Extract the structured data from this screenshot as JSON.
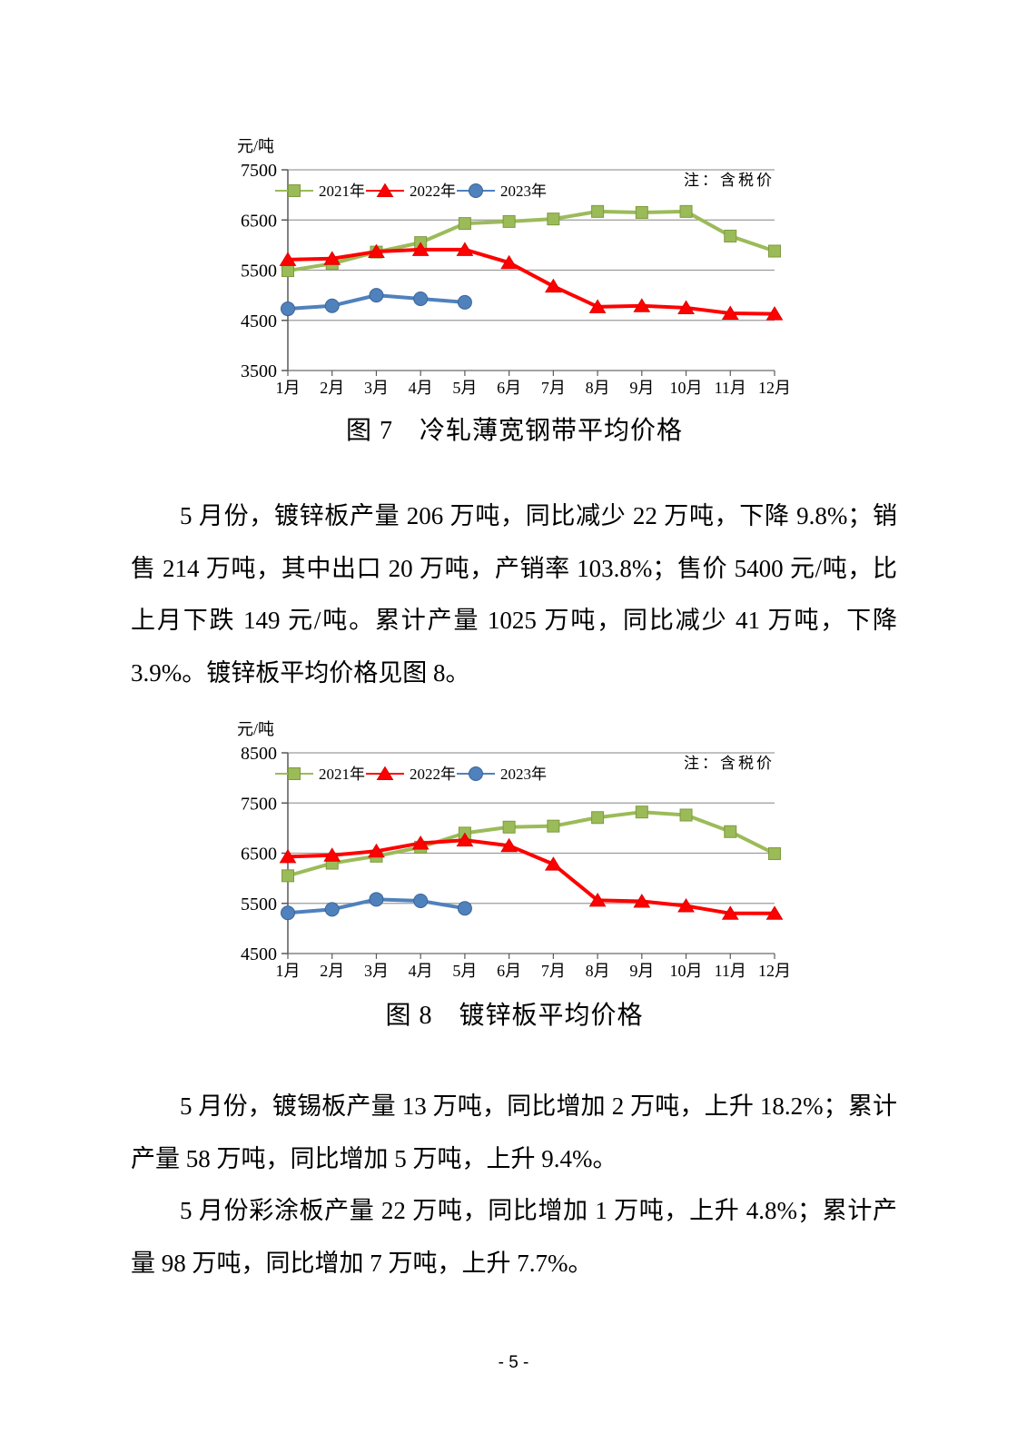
{
  "page": {
    "footer_page_number": "- 5 -"
  },
  "paragraphs": [
    "5 月份，镀锌板产量 206 万吨，同比减少 22 万吨，下降 9.8%；销售 214 万吨，其中出口 20 万吨，产销率 103.8%；售价 5400 元/吨，比上月下跌 149 元/吨。累计产量 1025 万吨，同比减少 41 万吨，下降 3.9%。镀锌板平均价格见图 8。",
    "5 月份，镀锡板产量 13 万吨，同比增加 2 万吨，上升 18.2%；累计产量 58 万吨，同比增加 5 万吨，上升 9.4%。",
    "5 月份彩涂板产量 22 万吨，同比增加 1 万吨，上升 4.8%；累计产量 98 万吨，同比增加 7 万吨，上升 7.7%。"
  ],
  "chart_data": [
    {
      "type": "line",
      "title": "图 7　冷轧薄宽钢带平均价格",
      "unit_label": "元/吨",
      "note": "注：含税价",
      "x": [
        "1月",
        "2月",
        "3月",
        "4月",
        "5月",
        "6月",
        "7月",
        "8月",
        "9月",
        "10月",
        "11月",
        "12月"
      ],
      "ylim": [
        3500,
        7500
      ],
      "yticks": [
        3500,
        4500,
        5500,
        6500,
        7500
      ],
      "grid": true,
      "legend_position": "top-left-inside",
      "series": [
        {
          "name": "2021年",
          "marker": "square",
          "color": "#9BBB59",
          "edge": "#7E9A40",
          "values": [
            5490,
            5630,
            5860,
            6050,
            6430,
            6470,
            6520,
            6670,
            6650,
            6670,
            6180,
            5880
          ]
        },
        {
          "name": "2022年",
          "marker": "triangle",
          "color": "#FF0000",
          "edge": "#E00000",
          "values": [
            5710,
            5730,
            5870,
            5910,
            5910,
            5650,
            5180,
            4770,
            4790,
            4750,
            4640,
            4630
          ]
        },
        {
          "name": "2023年",
          "marker": "circle",
          "color": "#4F81BD",
          "edge": "#3A6494",
          "values": [
            4730,
            4790,
            5000,
            4930,
            4860
          ]
        }
      ]
    },
    {
      "type": "line",
      "title": "图 8　镀锌板平均价格",
      "unit_label": "元/吨",
      "note": "注：含税价",
      "x": [
        "1月",
        "2月",
        "3月",
        "4月",
        "5月",
        "6月",
        "7月",
        "8月",
        "9月",
        "10月",
        "11月",
        "12月"
      ],
      "ylim": [
        4500,
        8500
      ],
      "yticks": [
        4500,
        5500,
        6500,
        7500,
        8500
      ],
      "grid": true,
      "legend_position": "top-left-inside",
      "series": [
        {
          "name": "2021年",
          "marker": "square",
          "color": "#9BBB59",
          "edge": "#7E9A40",
          "values": [
            6050,
            6300,
            6440,
            6620,
            6900,
            7020,
            7040,
            7210,
            7320,
            7260,
            6930,
            6490
          ]
        },
        {
          "name": "2022年",
          "marker": "triangle",
          "color": "#FF0000",
          "edge": "#E00000",
          "values": [
            6430,
            6460,
            6540,
            6700,
            6760,
            6650,
            6280,
            5560,
            5540,
            5450,
            5300,
            5300
          ]
        },
        {
          "name": "2023年",
          "marker": "circle",
          "color": "#4F81BD",
          "edge": "#3A6494",
          "values": [
            5310,
            5380,
            5580,
            5550,
            5400
          ]
        }
      ]
    }
  ]
}
